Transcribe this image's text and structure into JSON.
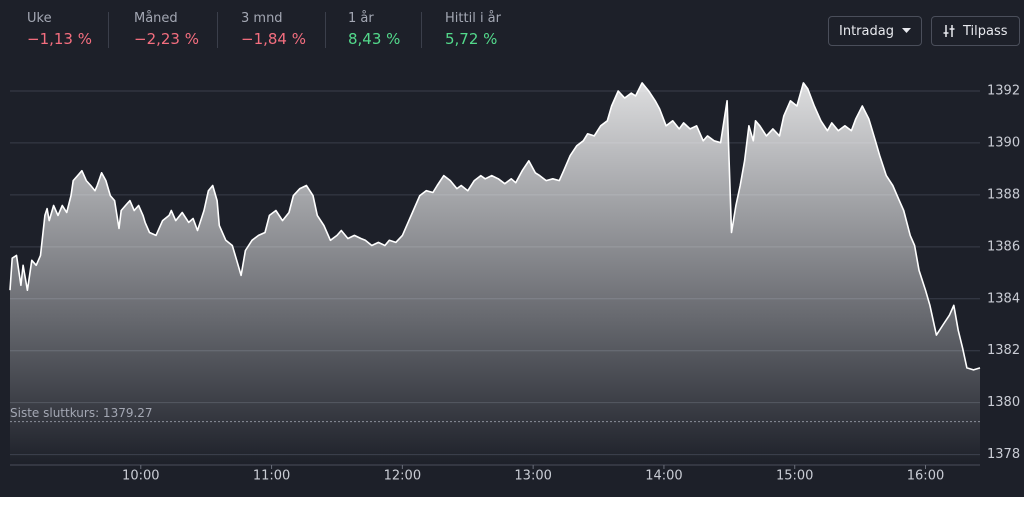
{
  "header": {
    "stats": [
      {
        "label": "Uke",
        "value": "−1,13 %",
        "color": "#f46e7f"
      },
      {
        "label": "Måned",
        "value": "−2,23 %",
        "color": "#f46e7f"
      },
      {
        "label": "3 mnd",
        "value": "−1,84 %",
        "color": "#f46e7f"
      },
      {
        "label": "1 år",
        "value": "8,43 %",
        "color": "#53d98b"
      },
      {
        "label": "Hittil i år",
        "value": "5,72 %",
        "color": "#53d98b"
      }
    ],
    "buttons": [
      "Intradag",
      "Tilpass"
    ]
  },
  "chart_data": {
    "type": "area",
    "color": "#ffffff",
    "x": [
      540,
      541,
      543,
      545,
      546,
      548,
      550,
      552,
      554,
      556,
      557,
      558,
      560,
      562,
      564,
      566,
      568,
      569,
      571,
      573,
      575,
      577,
      579,
      580,
      582,
      584,
      586,
      588,
      590,
      591,
      593,
      595,
      597,
      599,
      601,
      602,
      604,
      607,
      610,
      613,
      614,
      616,
      619,
      622,
      624,
      626,
      629,
      631,
      633,
      635,
      636,
      639,
      642,
      644,
      646,
      648,
      651,
      654,
      657,
      659,
      662,
      665,
      668,
      670,
      673,
      676,
      679,
      681,
      684,
      687,
      690,
      692,
      695,
      698,
      701,
      703,
      706,
      709,
      712,
      714,
      717,
      720,
      723,
      725,
      728,
      731,
      734,
      736,
      739,
      742,
      745,
      747,
      750,
      753,
      756,
      758,
      761,
      764,
      767,
      770,
      772,
      775,
      778,
      781,
      783,
      786,
      789,
      792,
      794,
      797,
      800,
      803,
      805,
      808,
      811,
      814,
      816,
      819,
      822,
      825,
      827,
      830,
      833,
      836,
      838,
      841,
      844,
      847,
      849,
      852,
      855,
      858,
      860,
      863,
      866,
      869,
      871,
      873,
      875,
      877,
      879,
      881,
      882,
      884,
      887,
      890,
      893,
      895,
      898,
      901,
      904,
      906,
      909,
      912,
      915,
      917,
      920,
      923,
      926,
      928,
      931,
      934,
      937,
      939,
      942,
      945,
      948,
      950,
      953,
      955,
      957,
      960,
      962,
      965,
      968,
      971,
      973,
      975,
      977,
      979,
      982,
      985
    ],
    "values": [
      1384.33,
      1385.56,
      1385.67,
      1384.52,
      1385.29,
      1384.33,
      1385.48,
      1385.29,
      1385.67,
      1387.21,
      1387.47,
      1387.01,
      1387.59,
      1387.21,
      1387.59,
      1387.32,
      1387.97,
      1388.55,
      1388.74,
      1388.93,
      1388.55,
      1388.36,
      1388.16,
      1388.36,
      1388.85,
      1388.55,
      1387.97,
      1387.78,
      1386.71,
      1387.4,
      1387.59,
      1387.78,
      1387.4,
      1387.59,
      1387.21,
      1386.94,
      1386.55,
      1386.44,
      1387.01,
      1387.21,
      1387.4,
      1387.01,
      1387.32,
      1386.94,
      1387.09,
      1386.63,
      1387.4,
      1388.16,
      1388.36,
      1387.78,
      1386.82,
      1386.25,
      1386.05,
      1385.48,
      1384.9,
      1385.86,
      1386.25,
      1386.44,
      1386.55,
      1387.21,
      1387.4,
      1387.01,
      1387.32,
      1387.97,
      1388.24,
      1388.36,
      1387.97,
      1387.21,
      1386.82,
      1386.25,
      1386.44,
      1386.63,
      1386.32,
      1386.44,
      1386.32,
      1386.25,
      1386.05,
      1386.17,
      1386.05,
      1386.25,
      1386.17,
      1386.44,
      1387.01,
      1387.4,
      1387.97,
      1388.16,
      1388.09,
      1388.36,
      1388.74,
      1388.55,
      1388.24,
      1388.36,
      1388.16,
      1388.55,
      1388.74,
      1388.62,
      1388.74,
      1388.62,
      1388.43,
      1388.62,
      1388.47,
      1388.93,
      1389.31,
      1388.85,
      1388.74,
      1388.55,
      1388.62,
      1388.55,
      1388.93,
      1389.51,
      1389.89,
      1390.08,
      1390.35,
      1390.27,
      1390.66,
      1390.85,
      1391.42,
      1392.0,
      1391.73,
      1391.92,
      1391.81,
      1392.31,
      1392.0,
      1391.62,
      1391.31,
      1390.66,
      1390.85,
      1390.54,
      1390.77,
      1390.54,
      1390.66,
      1390.08,
      1390.27,
      1390.08,
      1390.01,
      1391.62,
      1386.55,
      1387.59,
      1388.36,
      1389.31,
      1390.66,
      1390.08,
      1390.85,
      1390.66,
      1390.27,
      1390.54,
      1390.27,
      1391.04,
      1391.62,
      1391.42,
      1392.31,
      1392.08,
      1391.42,
      1390.85,
      1390.47,
      1390.77,
      1390.47,
      1390.66,
      1390.47,
      1390.93,
      1391.42,
      1390.93,
      1390.08,
      1389.51,
      1388.74,
      1388.36,
      1387.78,
      1387.4,
      1386.44,
      1386.05,
      1385.1,
      1384.33,
      1383.75,
      1382.6,
      1382.99,
      1383.37,
      1383.75,
      1382.79,
      1382.1,
      1381.34,
      1381.26,
      1381.34
    ],
    "xlim": [
      540,
      985
    ],
    "xticks": [
      {
        "value": 600,
        "label": "10:00"
      },
      {
        "value": 660,
        "label": "11:00"
      },
      {
        "value": 720,
        "label": "12:00"
      },
      {
        "value": 780,
        "label": "13:00"
      },
      {
        "value": 840,
        "label": "14:00"
      },
      {
        "value": 900,
        "label": "15:00"
      },
      {
        "value": 960,
        "label": "16:00"
      }
    ],
    "ylim": [
      1377.6,
      1393
    ],
    "yticks": [
      1378,
      1380,
      1382,
      1384,
      1386,
      1388,
      1390,
      1392
    ],
    "grid": true,
    "reference": {
      "label": "Siste sluttkurs: 1379.27",
      "value": 1379.27
    }
  }
}
